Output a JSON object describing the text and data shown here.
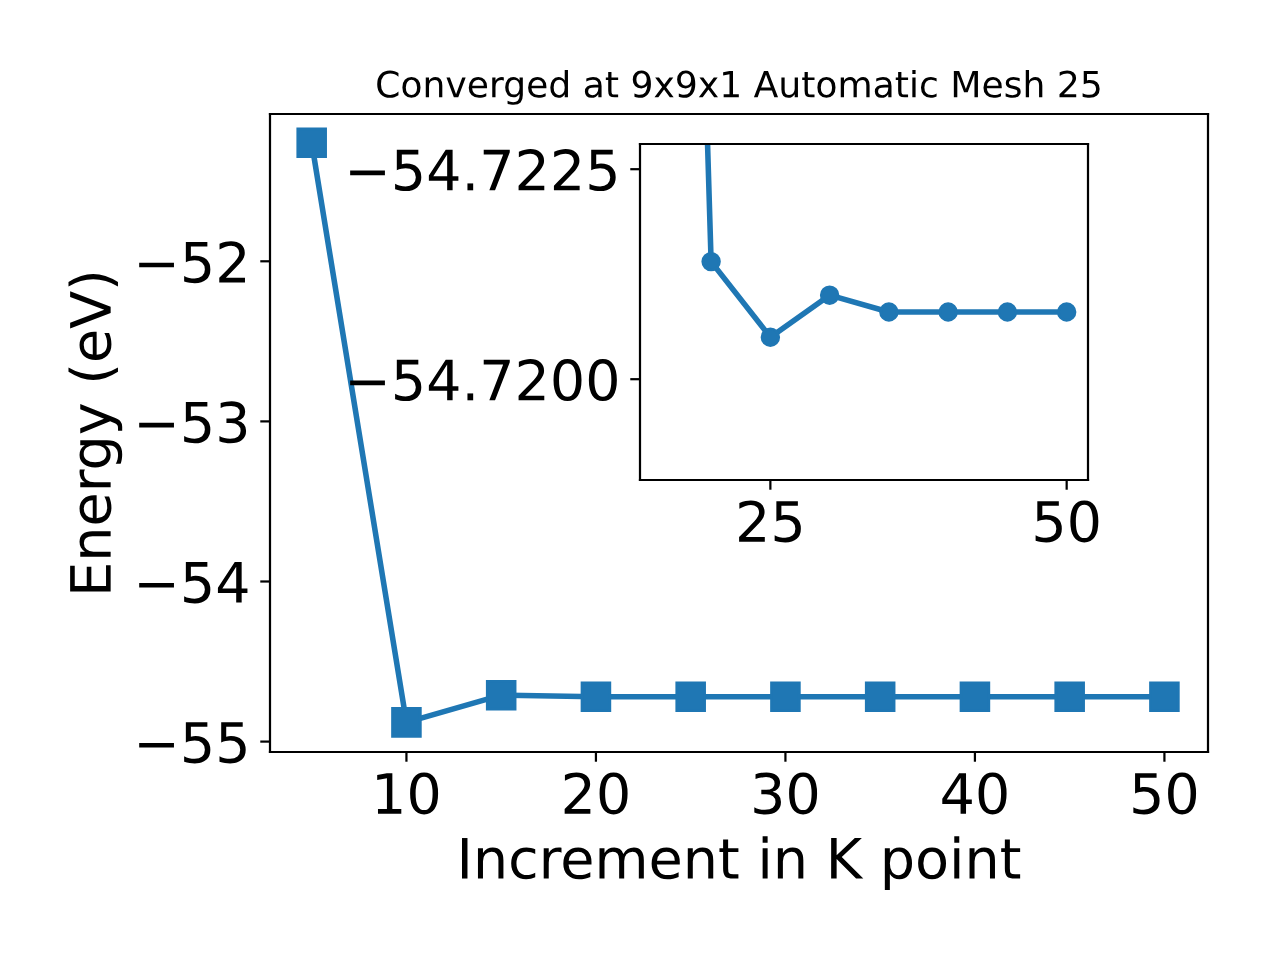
{
  "chart_data": [
    {
      "type": "line",
      "title": "Converged at 9x9x1 Automatic Mesh 25",
      "xlabel": "Increment in K point",
      "ylabel": "Energy (eV)",
      "x": [
        5,
        10,
        15,
        20,
        25,
        30,
        35,
        40,
        45,
        50
      ],
      "series": [
        {
          "color": "#1f77b4",
          "values": [
            -51.26,
            -54.88,
            -54.71,
            -54.72,
            -54.72,
            -54.72,
            -54.72,
            -54.72,
            -54.72,
            -54.72
          ]
        }
      ],
      "xlim": [
        2.8,
        52.3
      ],
      "xticks": [
        10,
        20,
        30,
        40,
        50
      ],
      "ylim": [
        -55.065,
        -51.08
      ],
      "yticks": [
        -55,
        -54,
        -53,
        -52
      ],
      "marker": "square",
      "line_style": "solid",
      "grid": false,
      "legend": false
    },
    {
      "type": "line",
      "x": [
        19.7,
        20,
        25,
        30,
        35,
        40,
        45,
        50
      ],
      "series": [
        {
          "color": "#1f77b4",
          "values": [
            -54.7228,
            -54.7214,
            -54.7205,
            -54.721,
            -54.7208,
            -54.7208,
            -54.7208,
            -54.7208
          ]
        }
      ],
      "xlim": [
        14,
        51.8
      ],
      "xticks": [
        25,
        50
      ],
      "ylim": [
        -54.7188,
        -54.7228
      ],
      "yticks": [
        -54.7225,
        {
          "value": -54.72,
          "label": "−54.7200"
        }
      ],
      "marker": "circle",
      "line_style": "solid",
      "grid": false,
      "legend": false
    }
  ]
}
